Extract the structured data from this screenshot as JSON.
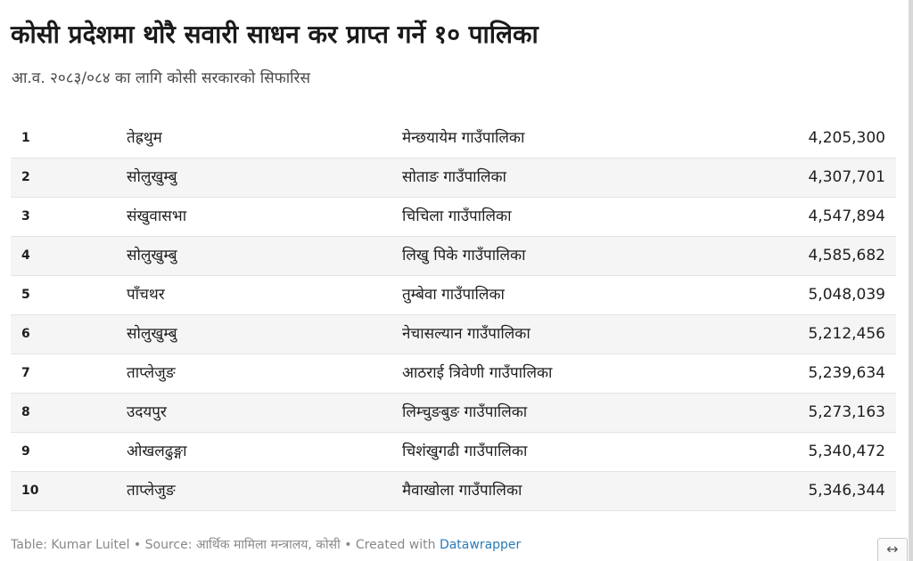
{
  "header": {
    "title": "कोसी प्रदेशमा थोरै सवारी साधन कर प्राप्त गर्ने १० पालिका",
    "subtitle": "आ.व. २०८३/०८४ का लागि कोसी सरकारको सिफारिस"
  },
  "table": {
    "rows": [
      {
        "rank": "1",
        "district": "तेह्रथुम",
        "municipality": "मेन्छयायेम गाउँपालिका",
        "amount": "4,205,300"
      },
      {
        "rank": "2",
        "district": "सोलुखुम्बु",
        "municipality": "सोताङ गाउँपालिका",
        "amount": "4,307,701"
      },
      {
        "rank": "3",
        "district": "संखुवासभा",
        "municipality": "चिचिला गाउँपालिका",
        "amount": "4,547,894"
      },
      {
        "rank": "4",
        "district": "सोलुखुम्बु",
        "municipality": "लिखु पिके गाउँपालिका",
        "amount": "4,585,682"
      },
      {
        "rank": "5",
        "district": "पाँचथर",
        "municipality": "तुम्बेवा गाउँपालिका",
        "amount": "5,048,039"
      },
      {
        "rank": "6",
        "district": "सोलुखुम्बु",
        "municipality": "नेचासल्यान गाउँपालिका",
        "amount": "5,212,456"
      },
      {
        "rank": "7",
        "district": "ताप्लेजुङ",
        "municipality": "आठराई त्रिवेणी गाउँपालिका",
        "amount": "5,239,634"
      },
      {
        "rank": "8",
        "district": "उदयपुर",
        "municipality": "लिम्चुङबुङ गाउँपालिका",
        "amount": "5,273,163"
      },
      {
        "rank": "9",
        "district": "ओखलढुङ्गा",
        "municipality": "चिशंखुगढी गाउँपालिका",
        "amount": "5,340,472"
      },
      {
        "rank": "10",
        "district": "ताप्लेजुङ",
        "municipality": "मैवाखोला गाउँपालिका",
        "amount": "5,346,344"
      }
    ]
  },
  "footer": {
    "text": "Table: Kumar Luitel • Source: आर्थिक मामिला मन्त्रालय, कोसी • Created with ",
    "link_label": "Datawrapper"
  },
  "expand": {
    "icon": "↔",
    "icon_name": "expand-horizontal-icon"
  },
  "colors": {
    "stripe": "#f5f5f5",
    "link": "#2a7bb8",
    "footer_text": "#888888"
  }
}
